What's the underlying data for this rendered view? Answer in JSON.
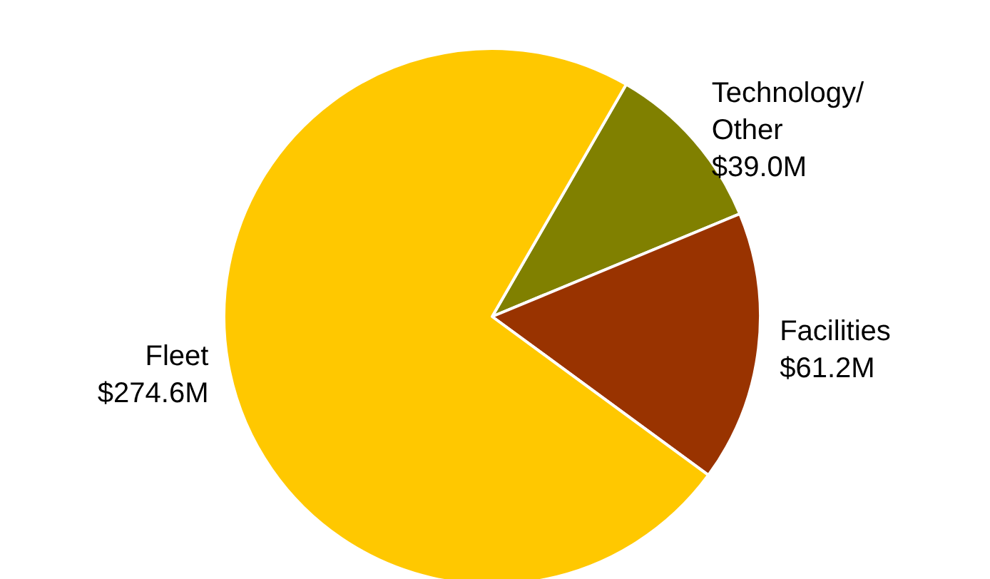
{
  "chart_data": {
    "type": "pie",
    "categories": [
      "Technology/\nOther",
      "Facilities",
      "Fleet"
    ],
    "values": [
      39.0,
      61.2,
      274.6
    ],
    "value_labels": [
      "$39.0M",
      "$61.2M",
      "$274.6M"
    ],
    "colors": [
      "#808000",
      "#993300",
      "#ffc800"
    ],
    "legend": false
  }
}
